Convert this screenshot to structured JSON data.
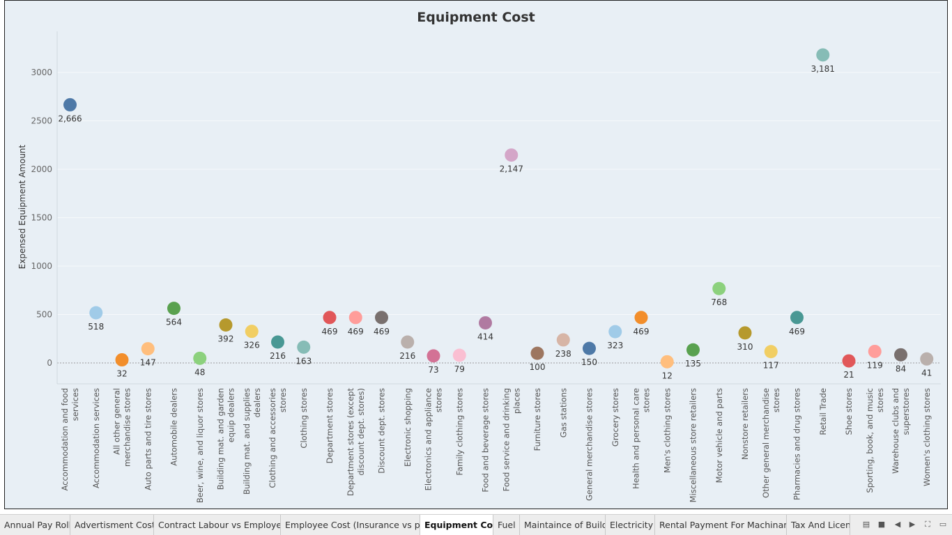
{
  "chart_data": {
    "type": "scatter",
    "title": "Equipment Cost",
    "ylabel": "Expensed Equipment Amount",
    "xlabel": "",
    "ylim": [
      -220,
      3450
    ],
    "yticks": [
      0,
      500,
      1000,
      1500,
      2000,
      2500,
      3000
    ],
    "categories": [
      "Accommodation and food services",
      "Accommodation services",
      "All other general merchandise stores",
      "Auto parts and tire stores",
      "Automobile dealers",
      "Beer, wine, and liquor stores",
      "Building mat. and garden equip dealers",
      "Building mat. and supplies dealers",
      "Clothing and accessories stores",
      "Clothing stores",
      "Department stores",
      "Department stores (except discount dept. stores)",
      "Discount dept. stores",
      "Electronic shopping",
      "Electronics and appliance stores",
      "Family clothing stores",
      "Food and beverage stores",
      "Food service and drinking places",
      "Furniture stores",
      "Gas stations",
      "General merchandise stores",
      "Grocery stores",
      "Health and personal care stores",
      "Men's clothing stores",
      "Miscellaneous store retailers",
      "Motor vehicle and parts",
      "Nonstore retailers",
      "Other general merchandise stores",
      "Pharmacies and drug stores",
      "Retail Trade",
      "Shoe stores",
      "Sporting, book, and music stores",
      "Warehouse clubs and superstores",
      "Women's clothing stores"
    ],
    "category_lines": [
      [
        "Accommodation and food",
        "services"
      ],
      [
        "Accommodation services"
      ],
      [
        "All other general",
        "merchandise stores"
      ],
      [
        "Auto parts and tire stores"
      ],
      [
        "Automobile dealers"
      ],
      [
        "Beer, wine, and liquor stores"
      ],
      [
        "Building mat. and garden",
        "equip dealers"
      ],
      [
        "Building mat. and supplies",
        "dealers"
      ],
      [
        "Clothing and accessories",
        "stores"
      ],
      [
        "Clothing stores"
      ],
      [
        "Department stores"
      ],
      [
        "Department stores (except",
        "discount dept. stores)"
      ],
      [
        "Discount dept. stores"
      ],
      [
        "Electronic shopping"
      ],
      [
        "Electronics and appliance",
        "stores"
      ],
      [
        "Family clothing stores"
      ],
      [
        "Food and beverage stores"
      ],
      [
        "Food service and drinking",
        "places"
      ],
      [
        "Furniture stores"
      ],
      [
        "Gas stations"
      ],
      [
        "General merchandise stores"
      ],
      [
        "Grocery stores"
      ],
      [
        "Health and personal care",
        "stores"
      ],
      [
        "Men's clothing stores"
      ],
      [
        "Miscellaneous store retailers"
      ],
      [
        "Motor vehicle and parts"
      ],
      [
        "Nonstore retailers"
      ],
      [
        "Other general merchandise",
        "stores"
      ],
      [
        "Pharmacies and drug stores"
      ],
      [
        "Retail Trade"
      ],
      [
        "Shoe stores"
      ],
      [
        "Sporting, book, and music",
        "stores"
      ],
      [
        "Warehouse clubs and",
        "superstores"
      ],
      [
        "Women's clothing stores"
      ]
    ],
    "values": [
      2666,
      518,
      32,
      147,
      564,
      48,
      392,
      326,
      216,
      163,
      469,
      469,
      469,
      216,
      73,
      79,
      414,
      2147,
      100,
      238,
      150,
      323,
      469,
      12,
      135,
      768,
      310,
      117,
      469,
      3181,
      21,
      119,
      84,
      41
    ],
    "value_labels": [
      "2,666",
      "518",
      "32",
      "147",
      "564",
      "48",
      "392",
      "326",
      "216",
      "163",
      "469",
      "469",
      "469",
      "216",
      "73",
      "79",
      "414",
      "2,147",
      "100",
      "238",
      "150",
      "323",
      "469",
      "12",
      "135",
      "768",
      "310",
      "117",
      "469",
      "3,181",
      "21",
      "119",
      "84",
      "41"
    ],
    "colors": [
      "#4e79a7",
      "#a0cbe8",
      "#f28e2b",
      "#ffbe7d",
      "#59a14f",
      "#8cd17d",
      "#b6992d",
      "#f1ce63",
      "#499894",
      "#86bcb6",
      "#e15759",
      "#ff9d9a",
      "#79706e",
      "#bab0ac",
      "#d37295",
      "#fabfd2",
      "#b07aa1",
      "#d4a6c8",
      "#9d7660",
      "#d7b5a6",
      "#4e79a7",
      "#a0cbe8",
      "#f28e2b",
      "#ffbe7d",
      "#59a14f",
      "#8cd17d",
      "#b6992d",
      "#f1ce63",
      "#499894",
      "#86bcb6",
      "#e15759",
      "#ff9d9a",
      "#79706e",
      "#bab0ac"
    ],
    "grid": true,
    "legend": "none"
  },
  "tabs": [
    {
      "label": "Annual Pay Roll",
      "active": false
    },
    {
      "label": "Advertisment Cost",
      "active": false
    },
    {
      "label": "Contract Labour vs Employee",
      "active": false
    },
    {
      "label": "Employee Cost (Insurance vs pe...",
      "active": false
    },
    {
      "label": "Equipment Cost",
      "active": true
    },
    {
      "label": "Fuel",
      "active": false
    },
    {
      "label": "Maintaince of Build",
      "active": false
    },
    {
      "label": "Electricity",
      "active": false
    },
    {
      "label": "Rental Payment For Machinary",
      "active": false
    },
    {
      "label": "Tax And License",
      "active": false
    }
  ],
  "tab_controls": [
    {
      "name": "show-filmstrip-icon",
      "glyph": "▤"
    },
    {
      "name": "show-sheet-icon",
      "glyph": "■"
    },
    {
      "name": "previous-sheet-icon",
      "glyph": "◀"
    },
    {
      "name": "next-sheet-icon",
      "glyph": "▶"
    },
    {
      "name": "fullscreen-icon",
      "glyph": "⛶"
    },
    {
      "name": "presentation-icon",
      "glyph": "▭"
    }
  ]
}
